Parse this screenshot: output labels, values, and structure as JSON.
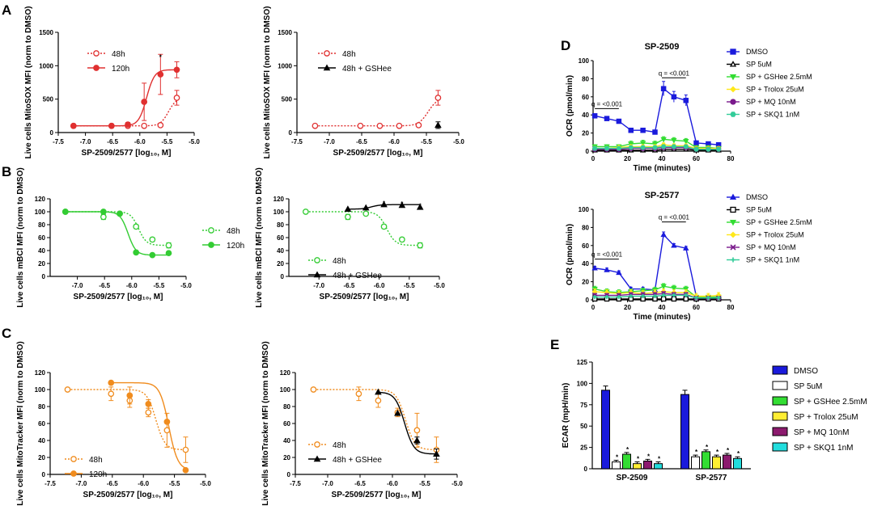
{
  "figure": {
    "panel_labels": [
      "A",
      "B",
      "C",
      "D",
      "E"
    ],
    "x_axis_label": "SP-2509/2577 [log₁₀, M]"
  },
  "chart_data": [
    {
      "id": "A1",
      "type": "scatter",
      "ylabel": "Live cells MitoSOX MFI (norm to DMSO)",
      "xlabel": "SP-2509/2577 [log₁₀, M]",
      "xlim": [
        -7.5,
        -5.0
      ],
      "ylim": [
        0,
        1500
      ],
      "xticks": [
        "-7.5",
        "-7.0",
        "-6.5",
        "-6.0",
        "-5.5",
        "-5.0"
      ],
      "yticks": [
        "0",
        "500",
        "1000",
        "1500"
      ],
      "series": [
        {
          "name": "48h",
          "color": "#e03030",
          "marker": "circle-open",
          "line": "dotted",
          "x": [
            -7.22,
            -6.52,
            -6.22,
            -5.92,
            -5.62,
            -5.32
          ],
          "y": [
            100,
            100,
            100,
            100,
            110,
            520
          ],
          "err": [
            0,
            0,
            0,
            0,
            0,
            110
          ]
        },
        {
          "name": "120h",
          "color": "#e03030",
          "marker": "circle",
          "line": "solid",
          "x": [
            -7.22,
            -6.52,
            -6.22,
            -5.92,
            -5.62,
            -5.32
          ],
          "y": [
            100,
            100,
            120,
            460,
            870,
            940
          ],
          "err": [
            0,
            0,
            30,
            280,
            300,
            120
          ]
        }
      ],
      "annotations": [
        {
          "text": "*",
          "x": -5.62,
          "y": 1170
        }
      ]
    },
    {
      "id": "A2",
      "type": "scatter",
      "ylabel": "Live cells MitoSOX MFI (norm to DMSO)",
      "xlabel": "SP-2509/2577 [log₁₀, M]",
      "xlim": [
        -7.5,
        -5.0
      ],
      "ylim": [
        0,
        1500
      ],
      "xticks": [
        "-7.5",
        "-7.0",
        "-6.5",
        "-6.0",
        "-5.5",
        "-5.0"
      ],
      "yticks": [
        "0",
        "500",
        "1000",
        "1500"
      ],
      "series": [
        {
          "name": "48h",
          "color": "#e03030",
          "marker": "circle-open",
          "line": "dotted",
          "x": [
            -7.22,
            -6.52,
            -6.22,
            -5.92,
            -5.62,
            -5.32
          ],
          "y": [
            100,
            100,
            100,
            100,
            110,
            520
          ],
          "err": [
            0,
            0,
            0,
            0,
            0,
            110
          ]
        },
        {
          "name": "48h + GSHee",
          "color": "#000000",
          "marker": "triangle",
          "line": "solid",
          "x": [
            -5.32
          ],
          "y": [
            110
          ],
          "err": [
            50
          ]
        }
      ],
      "annotations": []
    },
    {
      "id": "B1",
      "type": "scatter",
      "ylabel": "Live cells mBCl MFI (norm to DMSO)",
      "xlabel": "SP-2509/2577 [log₁₀, M]",
      "xlim": [
        -7.5,
        -5.0
      ],
      "ylim": [
        0,
        120
      ],
      "xticks": [
        "-7.0",
        "-6.5",
        "-6.0",
        "-5.5",
        "-5.0"
      ],
      "yticks": [
        "0",
        "20",
        "40",
        "60",
        "80",
        "100",
        "120"
      ],
      "series": [
        {
          "name": "48h",
          "color": "#33cc33",
          "marker": "circle-open",
          "line": "dotted",
          "x": [
            -7.22,
            -6.52,
            -6.22,
            -5.92,
            -5.62,
            -5.32
          ],
          "y": [
            100,
            92,
            97,
            77,
            57,
            48
          ],
          "err": [
            0,
            4,
            0,
            3,
            3,
            4
          ]
        },
        {
          "name": "120h",
          "color": "#33cc33",
          "marker": "circle",
          "line": "solid",
          "x": [
            -7.22,
            -6.52,
            -6.22,
            -5.92,
            -5.62,
            -5.32
          ],
          "y": [
            100,
            100,
            97,
            37,
            33,
            36
          ],
          "err": [
            0,
            0,
            0,
            0,
            0,
            0
          ]
        }
      ],
      "annotations": []
    },
    {
      "id": "B2",
      "type": "scatter",
      "ylabel": "Live cells mBCl MFI (norm to DMSO)",
      "xlabel": "SP-2509/2577 [log₁₀, M]",
      "xlim": [
        -7.5,
        -5.0
      ],
      "ylim": [
        0,
        120
      ],
      "xticks": [
        "-7.0",
        "-6.5",
        "-6.0",
        "-5.5",
        "-5.0"
      ],
      "yticks": [
        "0",
        "20",
        "40",
        "60",
        "80",
        "100",
        "120"
      ],
      "series": [
        {
          "name": "48h",
          "color": "#33cc33",
          "marker": "circle-open",
          "line": "dotted",
          "x": [
            -7.22,
            -6.52,
            -6.22,
            -5.92,
            -5.62,
            -5.32
          ],
          "y": [
            100,
            92,
            97,
            77,
            57,
            48
          ],
          "err": [
            0,
            4,
            0,
            3,
            3,
            4
          ]
        },
        {
          "name": "48h + GSHee",
          "color": "#000000",
          "marker": "triangle",
          "line": "solid",
          "x": [
            -6.52,
            -6.22,
            -5.92,
            -5.62,
            -5.32
          ],
          "y": [
            104,
            106,
            111,
            110,
            107
          ],
          "err": [
            0,
            0,
            0,
            0,
            0
          ]
        }
      ],
      "annotations": [
        {
          "text": "*",
          "x": -5.92,
          "y": 117
        },
        {
          "text": "*",
          "x": -5.62,
          "y": 116
        },
        {
          "text": "*",
          "x": -5.32,
          "y": 113
        }
      ]
    },
    {
      "id": "C1",
      "type": "scatter",
      "ylabel": "Live cells MitoTracker MFI (norm to DMSO)",
      "xlabel": "SP-2509/2577 [log₁₀, M]",
      "xlim": [
        -7.5,
        -5.0
      ],
      "ylim": [
        0,
        120
      ],
      "xticks": [
        "-7.5",
        "-7.0",
        "-6.5",
        "-6.0",
        "-5.5",
        "-5.0"
      ],
      "yticks": [
        "0",
        "20",
        "40",
        "60",
        "80",
        "100",
        "120"
      ],
      "series": [
        {
          "name": "48h",
          "color": "#f08c1e",
          "marker": "circle-open",
          "line": "dotted",
          "x": [
            -7.22,
            -6.52,
            -6.22,
            -5.92,
            -5.62,
            -5.32
          ],
          "y": [
            100,
            95,
            87,
            73,
            52,
            29
          ],
          "err": [
            0,
            8,
            8,
            5,
            20,
            15
          ]
        },
        {
          "name": "120h",
          "color": "#f08c1e",
          "marker": "circle",
          "line": "solid",
          "x": [
            -6.52,
            -6.22,
            -5.92,
            -5.62,
            -5.32
          ],
          "y": [
            108,
            93,
            83,
            62,
            5
          ],
          "err": [
            0,
            10,
            5,
            0,
            0
          ]
        }
      ],
      "annotations": []
    },
    {
      "id": "C2",
      "type": "scatter",
      "ylabel": "Live cells MitoTracker MFI (norm to DMSO)",
      "xlabel": "SP-2509/2577 [log₁₀, M]",
      "xlim": [
        -7.5,
        -5.0
      ],
      "ylim": [
        0,
        120
      ],
      "xticks": [
        "-7.5",
        "-7.0",
        "-6.5",
        "-6.0",
        "-5.5",
        "-5.0"
      ],
      "yticks": [
        "0",
        "20",
        "40",
        "60",
        "80",
        "100",
        "120"
      ],
      "series": [
        {
          "name": "48h",
          "color": "#f08c1e",
          "marker": "circle-open",
          "line": "dotted",
          "x": [
            -7.22,
            -6.52,
            -6.22,
            -5.92,
            -5.62,
            -5.32
          ],
          "y": [
            100,
            95,
            87,
            73,
            52,
            29
          ],
          "err": [
            0,
            8,
            8,
            5,
            20,
            15
          ]
        },
        {
          "name": "48h + GSHee",
          "color": "#000000",
          "marker": "triangle",
          "line": "solid",
          "x": [
            -6.22,
            -5.92,
            -5.62,
            -5.32
          ],
          "y": [
            97,
            72,
            40,
            24
          ],
          "err": [
            0,
            0,
            4,
            6
          ]
        }
      ],
      "annotations": []
    },
    {
      "id": "D1",
      "type": "line",
      "title": "SP-2509",
      "ylabel": "OCR (pmol/min)",
      "xlabel": "Time (minutes)",
      "xlim": [
        0,
        80
      ],
      "ylim": [
        0,
        100
      ],
      "xticks": [
        "0",
        "20",
        "40",
        "60",
        "80"
      ],
      "yticks": [
        "0",
        "20",
        "40",
        "60",
        "80",
        "100"
      ],
      "x": [
        1,
        8,
        15,
        22,
        29,
        36,
        41,
        47,
        54,
        60,
        67,
        73
      ],
      "series": [
        {
          "name": "DMSO",
          "color": "#1a1adc",
          "marker": "square",
          "y": [
            39,
            36,
            33,
            23,
            23,
            21,
            69,
            60,
            56,
            9,
            8,
            7
          ],
          "err": [
            2,
            2,
            2,
            2,
            2,
            2,
            8,
            6,
            6,
            2,
            2,
            2
          ]
        },
        {
          "name": "SP 5uM",
          "color": "#000000",
          "marker": "triangle-open",
          "y": [
            1,
            1,
            1,
            1,
            1,
            1,
            2,
            2,
            2,
            1,
            1,
            1
          ],
          "err": [
            1,
            1,
            1,
            1,
            1,
            1,
            1,
            1,
            1,
            1,
            1,
            1
          ]
        },
        {
          "name": "SP + GSHee 2.5mM",
          "color": "#33dd33",
          "marker": "triangle-down",
          "y": [
            5,
            5,
            5,
            8,
            9,
            8,
            13,
            12,
            11,
            4,
            4,
            3
          ],
          "err": [
            2,
            2,
            2,
            3,
            3,
            3,
            3,
            3,
            3,
            2,
            2,
            2
          ]
        },
        {
          "name": "SP + Trolox 25uM",
          "color": "#ffe81a",
          "marker": "diamond",
          "y": [
            3,
            3,
            4,
            5,
            5,
            5,
            7,
            6,
            6,
            3,
            3,
            3
          ],
          "err": [
            2,
            2,
            2,
            2,
            2,
            2,
            2,
            2,
            2,
            2,
            2,
            2
          ]
        },
        {
          "name": "SP + MQ 10nM",
          "color": "#7a1a8c",
          "marker": "circle",
          "y": [
            2,
            2,
            2,
            3,
            3,
            3,
            4,
            4,
            4,
            2,
            2,
            2
          ],
          "err": [
            1,
            1,
            1,
            1,
            1,
            1,
            1,
            1,
            1,
            1,
            1,
            1
          ]
        },
        {
          "name": "SP + SKQ1 1nM",
          "color": "#33cc99",
          "marker": "hexagon",
          "y": [
            3,
            3,
            3,
            4,
            4,
            4,
            5,
            5,
            5,
            2,
            2,
            2
          ],
          "err": [
            1,
            1,
            1,
            1,
            1,
            1,
            1,
            1,
            1,
            1,
            1,
            1
          ]
        }
      ],
      "annotations": [
        {
          "text": "q = <0.001",
          "x1": 1,
          "x2": 15,
          "y": 47
        },
        {
          "text": "q = <0.001",
          "x1": 40,
          "x2": 54,
          "y": 81
        }
      ]
    },
    {
      "id": "D2",
      "type": "line",
      "title": "SP-2577",
      "ylabel": "OCR (pmol/min)",
      "xlabel": "Time (minutes)",
      "xlim": [
        0,
        80
      ],
      "ylim": [
        0,
        100
      ],
      "xticks": [
        "0",
        "20",
        "40",
        "60",
        "80"
      ],
      "yticks": [
        "0",
        "20",
        "40",
        "60",
        "80",
        "100"
      ],
      "x": [
        1,
        8,
        15,
        22,
        29,
        36,
        41,
        47,
        54,
        60,
        67,
        73
      ],
      "series": [
        {
          "name": "DMSO",
          "color": "#1a1adc",
          "marker": "triangle",
          "y": [
            35,
            33,
            30,
            12,
            12,
            11,
            72,
            60,
            57,
            4,
            3,
            3
          ],
          "err": [
            2,
            2,
            2,
            2,
            2,
            2,
            3,
            2,
            2,
            1,
            1,
            1
          ]
        },
        {
          "name": "SP 5uM",
          "color": "#000000",
          "marker": "square-open",
          "y": [
            1,
            1,
            1,
            1,
            1,
            1,
            1,
            1,
            1,
            1,
            1,
            1
          ],
          "err": [
            1,
            1,
            1,
            1,
            1,
            1,
            1,
            1,
            1,
            1,
            1,
            1
          ]
        },
        {
          "name": "SP + GSHee 2.5mM",
          "color": "#33dd33",
          "marker": "triangle-down",
          "y": [
            12,
            9,
            8,
            9,
            10,
            11,
            15,
            13,
            12,
            3,
            3,
            3
          ],
          "err": [
            3,
            3,
            3,
            3,
            3,
            3,
            3,
            3,
            3,
            2,
            2,
            2
          ]
        },
        {
          "name": "SP + Trolox 25uM",
          "color": "#ffe81a",
          "marker": "diamond",
          "y": [
            9,
            8,
            7,
            8,
            7,
            8,
            9,
            8,
            8,
            4,
            4,
            5
          ],
          "err": [
            3,
            3,
            3,
            3,
            3,
            3,
            3,
            3,
            3,
            3,
            3,
            3
          ]
        },
        {
          "name": "SP + MQ 10nM",
          "color": "#7a1a8c",
          "marker": "x",
          "y": [
            5,
            5,
            5,
            6,
            6,
            6,
            7,
            6,
            6,
            2,
            2,
            2
          ],
          "err": [
            2,
            2,
            2,
            2,
            2,
            2,
            2,
            2,
            2,
            1,
            1,
            1
          ]
        },
        {
          "name": "SP + SKQ1 1nM",
          "color": "#33cc99",
          "marker": "plus",
          "y": [
            3,
            3,
            3,
            4,
            4,
            4,
            5,
            5,
            5,
            2,
            2,
            2
          ],
          "err": [
            1,
            1,
            1,
            1,
            1,
            1,
            1,
            1,
            1,
            1,
            1,
            1
          ]
        }
      ],
      "annotations": [
        {
          "text": "q = <0.001",
          "x1": 1,
          "x2": 15,
          "y": 45
        },
        {
          "text": "q = <0.001",
          "x1": 40,
          "x2": 54,
          "y": 86
        }
      ]
    },
    {
      "id": "E",
      "type": "bar",
      "ylabel": "ECAR (mpH/min)",
      "ylim": [
        0,
        125
      ],
      "yticks": [
        "0",
        "25",
        "50",
        "75",
        "100",
        "125"
      ],
      "categories": [
        "SP-2509",
        "SP-2577"
      ],
      "series": [
        {
          "name": "DMSO",
          "color": "#1a1adc",
          "values": [
            92,
            87
          ],
          "err": [
            5,
            5
          ],
          "star": [
            false,
            false
          ]
        },
        {
          "name": "SP 5uM",
          "color": "#ffffff",
          "values": [
            8,
            14
          ],
          "err": [
            2,
            2
          ],
          "star": [
            true,
            true
          ]
        },
        {
          "name": "SP + GSHee 2.5mM",
          "color": "#33dd33",
          "values": [
            17,
            20
          ],
          "err": [
            2,
            2
          ],
          "star": [
            true,
            true
          ]
        },
        {
          "name": "SP + Trolox 25uM",
          "color": "#ffee33",
          "values": [
            6,
            14
          ],
          "err": [
            2,
            2
          ],
          "star": [
            true,
            true
          ]
        },
        {
          "name": "SP + MQ 10nM",
          "color": "#8c1a6e",
          "values": [
            9,
            16
          ],
          "err": [
            2,
            2
          ],
          "star": [
            true,
            true
          ]
        },
        {
          "name": "SP + SKQ1 1nM",
          "color": "#22dddd",
          "values": [
            6,
            12
          ],
          "err": [
            2,
            2
          ],
          "star": [
            true,
            true
          ]
        }
      ]
    }
  ]
}
